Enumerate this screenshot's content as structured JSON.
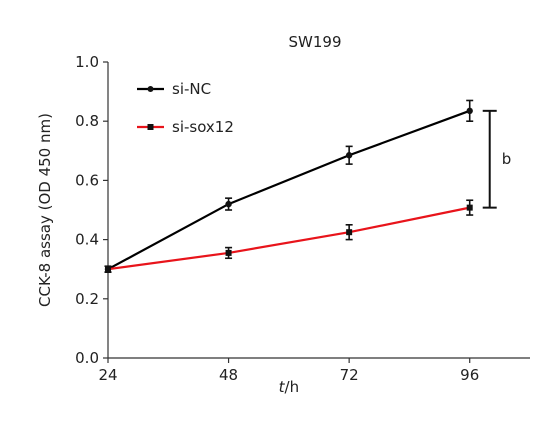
{
  "chart_data": {
    "type": "line",
    "title": "SW199",
    "xlabel_italic": "t",
    "xlabel_unit": "/h",
    "ylabel": "CCK-8 assay (OD 450 nm)",
    "x": [
      24,
      48,
      72,
      96
    ],
    "xlim": [
      24,
      108
    ],
    "ylim": [
      0,
      1.0
    ],
    "x_ticks": [
      24,
      48,
      72,
      96
    ],
    "y_ticks": [
      0.0,
      0.2,
      0.4,
      0.6,
      0.8,
      1.0
    ],
    "y_tick_labels": [
      "0.0",
      "0.2",
      "0.4",
      "0.6",
      "0.8",
      "1.0"
    ],
    "series": [
      {
        "name": "si-NC",
        "color": "#000000",
        "marker": "circle",
        "values": [
          0.3,
          0.52,
          0.685,
          0.835
        ],
        "errors": [
          0.01,
          0.02,
          0.03,
          0.035
        ]
      },
      {
        "name": "si-sox12",
        "color": "#e8141b",
        "marker": "square",
        "values": [
          0.3,
          0.355,
          0.425,
          0.508
        ],
        "errors": [
          0.01,
          0.018,
          0.025,
          0.025
        ]
      }
    ],
    "legend_position": "top-left",
    "annotation": {
      "text": "b",
      "between": [
        "si-NC",
        "si-sox12"
      ],
      "at_x": 96
    },
    "grid": false
  }
}
